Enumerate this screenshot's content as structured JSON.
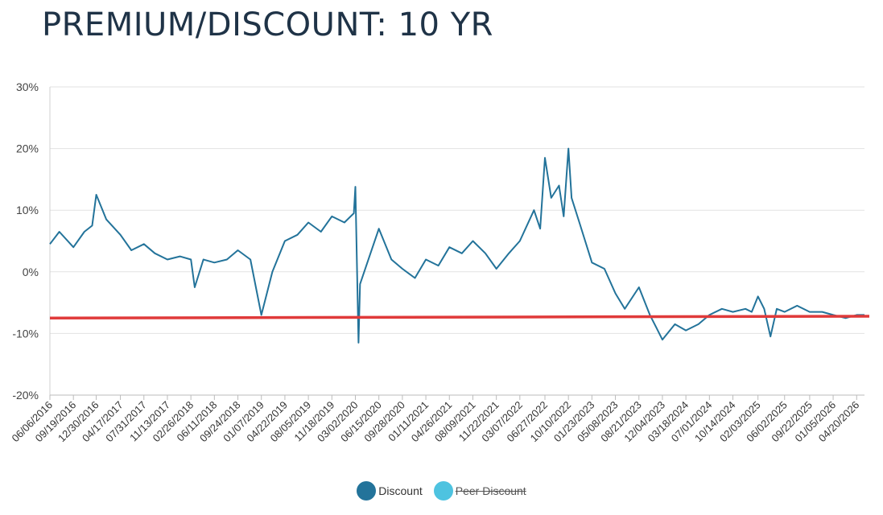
{
  "header": {
    "title": "PREMIUM/DISCOUNT: 10 YR"
  },
  "colors": {
    "discount": "#23739a",
    "peer_discount": "#4ec3e0",
    "reference_line": "#e03a3a",
    "grid": "#e2e2e2"
  },
  "chart_data": {
    "type": "line",
    "title": "PREMIUM/DISCOUNT: 10 YR",
    "xlabel": "",
    "ylabel": "",
    "ylim": [
      -20,
      30
    ],
    "y_ticks": [
      30,
      20,
      10,
      0,
      -10,
      -20
    ],
    "y_tick_labels": [
      "30%",
      "20%",
      "10%",
      "0%",
      "-10%",
      "-20%"
    ],
    "x_tick_labels": [
      "06/06/2016",
      "09/19/2016",
      "12/30/2016",
      "04/17/2017",
      "07/31/2017",
      "11/13/2017",
      "02/26/2018",
      "06/11/2018",
      "09/24/2018",
      "01/07/2019",
      "04/22/2019",
      "08/05/2019",
      "11/18/2019",
      "03/02/2020",
      "06/15/2020",
      "09/28/2020",
      "01/11/2021",
      "04/26/2021",
      "08/09/2021",
      "11/22/2021",
      "03/07/2022",
      "06/27/2022",
      "10/10/2022",
      "01/23/2023",
      "05/08/2023",
      "08/21/2023",
      "12/04/2023",
      "03/18/2024",
      "07/01/2024",
      "10/14/2024",
      "02/03/2025",
      "06/02/2025",
      "09/22/2025",
      "01/05/2026",
      "04/20/2026"
    ],
    "grid": true,
    "legend_position": "bottom-center",
    "series": [
      {
        "name": "Discount",
        "visible": true,
        "x": [
          "06/06/2016",
          "07/18/2016",
          "09/19/2016",
          "11/07/2016",
          "12/12/2016",
          "12/30/2016",
          "02/13/2017",
          "04/17/2017",
          "06/05/2017",
          "07/31/2017",
          "09/18/2017",
          "11/13/2017",
          "01/08/2018",
          "02/26/2018",
          "03/15/2018",
          "04/23/2018",
          "06/11/2018",
          "08/06/2018",
          "09/24/2018",
          "11/19/2018",
          "01/07/2019",
          "02/25/2019",
          "04/22/2019",
          "06/17/2019",
          "08/05/2019",
          "09/30/2019",
          "11/18/2019",
          "01/13/2020",
          "02/24/2020",
          "03/02/2020",
          "03/16/2020",
          "03/23/2020",
          "04/20/2020",
          "06/15/2020",
          "08/10/2020",
          "09/28/2020",
          "11/23/2020",
          "01/11/2021",
          "03/08/2021",
          "04/26/2021",
          "06/21/2021",
          "08/09/2021",
          "10/04/2021",
          "11/22/2021",
          "01/17/2022",
          "03/07/2022",
          "05/09/2022",
          "06/06/2022",
          "06/27/2022",
          "07/25/2022",
          "08/29/2022",
          "09/19/2022",
          "10/10/2022",
          "10/24/2022",
          "11/28/2022",
          "01/23/2023",
          "03/20/2023",
          "05/08/2023",
          "06/19/2023",
          "08/21/2023",
          "10/09/2023",
          "11/06/2023",
          "12/04/2023",
          "01/29/2024",
          "03/18/2024",
          "05/13/2024",
          "07/01/2024",
          "08/26/2024",
          "10/14/2024",
          "12/09/2024",
          "01/06/2025",
          "02/03/2025",
          "03/03/2025",
          "03/31/2025",
          "04/28/2025",
          "06/02/2025",
          "07/28/2025",
          "09/22/2025",
          "11/17/2025",
          "01/05/2026",
          "03/02/2026",
          "04/20/2026",
          "05/25/2026"
        ],
        "values": [
          4.5,
          6.5,
          4.0,
          6.5,
          7.5,
          12.5,
          8.5,
          6.0,
          3.5,
          4.5,
          3.0,
          2.0,
          2.5,
          2.0,
          -2.5,
          2.0,
          1.5,
          2.0,
          3.5,
          2.0,
          -7.0,
          0.0,
          5.0,
          6.0,
          8.0,
          6.5,
          9.0,
          8.0,
          9.5,
          13.8,
          -11.5,
          -2.0,
          1.0,
          7.0,
          2.0,
          0.5,
          -1.0,
          2.0,
          1.0,
          4.0,
          3.0,
          5.0,
          3.0,
          0.5,
          3.0,
          5.0,
          10.0,
          7.0,
          18.5,
          12.0,
          14.0,
          9.0,
          20.0,
          12.0,
          8.0,
          1.5,
          0.5,
          -3.5,
          -6.0,
          -2.5,
          -7.0,
          -9.0,
          -11.0,
          -8.5,
          -9.5,
          -8.5,
          -7.0,
          -6.0,
          -6.5,
          -6.0,
          -6.5,
          -4.0,
          -6.0,
          -10.5,
          -6.0,
          -6.5,
          -5.5,
          -6.5,
          -6.5,
          -7.0,
          -7.5,
          -7.0,
          -7.0
        ]
      },
      {
        "name": "Peer Discount",
        "visible": false,
        "x": [],
        "values": []
      }
    ],
    "reference_line": {
      "start_value": -7.5,
      "end_value": -7.2
    }
  },
  "legend": {
    "items": [
      {
        "label": "Discount",
        "icon": "circle-marker",
        "active": true
      },
      {
        "label": "Peer Discount",
        "icon": "circle-marker",
        "active": false
      }
    ]
  }
}
